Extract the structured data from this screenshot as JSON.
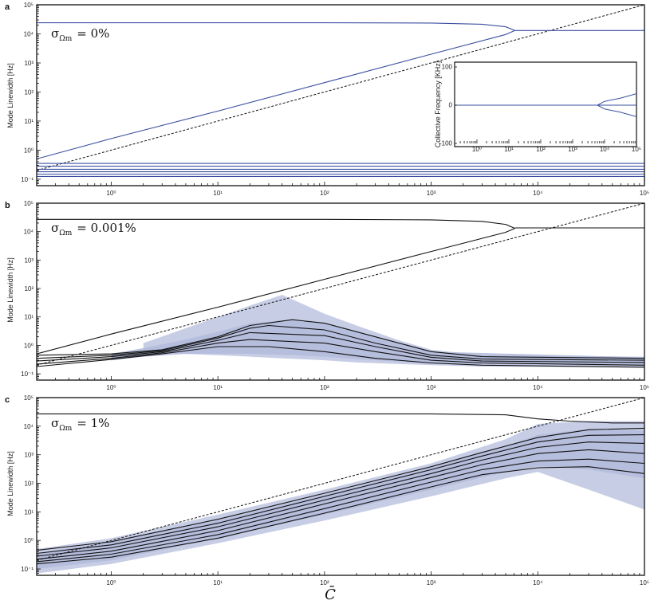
{
  "figure": {
    "xlabel": "C̄",
    "panels": [
      {
        "letter": "a",
        "ylabel": "Mode Linewidth [Hz]",
        "sigma_label": "σ",
        "sigma_sub": "Ωm",
        "sigma_value": "= 0%"
      },
      {
        "letter": "b",
        "ylabel": "Mode Linewidth [Hz]",
        "sigma_label": "σ",
        "sigma_sub": "Ωm",
        "sigma_value": "= 0.001%"
      },
      {
        "letter": "c",
        "ylabel": "Mode Linewidth [Hz]",
        "sigma_label": "σ",
        "sigma_sub": "Ωm",
        "sigma_value": "= 1%"
      }
    ],
    "inset": {
      "ylabel": "Collective Frequency [KHz]"
    }
  },
  "colors": {
    "blue_line": "#3a4fa0",
    "band": "#b4bcdc",
    "black": "#111111"
  },
  "chart_data": [
    {
      "type": "line",
      "panel": "a",
      "xscale": "log",
      "yscale": "log",
      "xlim": [
        0.2,
        100000
      ],
      "ylim": [
        0.06,
        100000
      ],
      "xticks": [
        "10⁰",
        "10¹",
        "10²",
        "10³",
        "10⁴",
        "10⁵"
      ],
      "yticks": [
        "10⁻¹",
        "10⁰",
        "10¹",
        "10²",
        "10³",
        "10⁴",
        "10⁵"
      ],
      "reference_line": {
        "style": "dashed",
        "x": [
          0.2,
          100000
        ],
        "y": [
          0.2,
          100000
        ]
      },
      "series": [
        {
          "x": [
            0.2,
            1,
            10,
            100,
            1000,
            5000,
            6100
          ],
          "y": [
            0.5,
            2.5,
            22,
            210,
            2000,
            9500,
            13000
          ]
        },
        {
          "x": [
            0.2,
            100,
            1000,
            3000,
            5000,
            6100
          ],
          "y": [
            24000,
            24000,
            23500,
            21500,
            17500,
            13000
          ]
        },
        {
          "x": [
            6100,
            100000
          ],
          "y": [
            13000,
            13000
          ]
        },
        {
          "x": [
            0.2,
            100000
          ],
          "y": [
            0.35,
            0.35
          ]
        },
        {
          "x": [
            0.2,
            100000
          ],
          "y": [
            0.28,
            0.28
          ]
        },
        {
          "x": [
            0.2,
            100000
          ],
          "y": [
            0.22,
            0.22
          ]
        },
        {
          "x": [
            0.2,
            100000
          ],
          "y": [
            0.18,
            0.18
          ]
        },
        {
          "x": [
            0.2,
            100000
          ],
          "y": [
            0.15,
            0.15
          ]
        },
        {
          "x": [
            0.2,
            100000
          ],
          "y": [
            0.125,
            0.125
          ]
        }
      ]
    },
    {
      "type": "line",
      "panel": "a-inset",
      "xscale": "log",
      "yscale": "linear",
      "xlim": [
        0.2,
        100000
      ],
      "ylim": [
        -100,
        100
      ],
      "xticks": [
        "10⁰",
        "10¹",
        "10²",
        "10³",
        "10⁴",
        "10⁵"
      ],
      "yticks": [
        "-100",
        "0",
        "100"
      ],
      "series": [
        {
          "x": [
            0.2,
            6000
          ],
          "y": [
            0,
            0
          ]
        },
        {
          "x": [
            6000,
            10000,
            30000,
            100000
          ],
          "y": [
            0,
            10,
            18,
            30
          ]
        },
        {
          "x": [
            6000,
            10000,
            30000,
            100000
          ],
          "y": [
            0,
            -10,
            -18,
            -30
          ]
        },
        {
          "x": [
            6000,
            100000
          ],
          "y": [
            0,
            0
          ]
        }
      ]
    },
    {
      "type": "area",
      "panel": "b",
      "xscale": "log",
      "yscale": "log",
      "xlim": [
        0.2,
        100000
      ],
      "ylim": [
        0.06,
        100000
      ],
      "xticks": [
        "10⁰",
        "10¹",
        "10²",
        "10³",
        "10⁴",
        "10⁵"
      ],
      "yticks": [
        "10⁻¹",
        "10⁰",
        "10¹",
        "10²",
        "10³",
        "10⁴",
        "10⁵"
      ],
      "reference_line": {
        "style": "dashed",
        "x": [
          0.2,
          100000
        ],
        "y": [
          0.2,
          100000
        ]
      },
      "bands": [
        {
          "x": [
            2,
            5,
            10,
            20,
            40,
            100,
            200,
            500,
            1000,
            3000,
            100000
          ],
          "upper": [
            1.2,
            4,
            10,
            25,
            60,
            13,
            5,
            1.5,
            0.7,
            0.45,
            0.4
          ],
          "lower": [
            0.6,
            0.5,
            0.45,
            0.4,
            0.35,
            0.3,
            0.25,
            0.22,
            0.2,
            0.18,
            0.17
          ]
        },
        {
          "x": [
            1,
            2,
            5,
            10,
            20,
            50,
            100,
            200,
            500,
            1000,
            100000
          ],
          "upper": [
            0.5,
            0.8,
            1.6,
            3,
            6,
            8,
            6,
            3,
            1.2,
            0.6,
            0.38
          ],
          "lower": [
            0.3,
            0.4,
            0.5,
            0.5,
            0.5,
            0.45,
            0.4,
            0.33,
            0.27,
            0.23,
            0.2
          ]
        }
      ],
      "series": [
        {
          "x": [
            0.2,
            1,
            10,
            100,
            1000,
            5000,
            6100
          ],
          "y": [
            0.5,
            2.5,
            22,
            210,
            2000,
            9500,
            13000
          ]
        },
        {
          "x": [
            0.2,
            100,
            1000,
            3000,
            5000,
            6100
          ],
          "y": [
            27000,
            27000,
            26000,
            23000,
            18000,
            13000
          ]
        },
        {
          "x": [
            6100,
            100000
          ],
          "y": [
            13500,
            13500
          ]
        },
        {
          "x": [
            0.2,
            1,
            3,
            10,
            20,
            50,
            100,
            300,
            1000,
            3000,
            100000
          ],
          "y": [
            0.45,
            0.5,
            0.7,
            2,
            5,
            8,
            6,
            2,
            0.6,
            0.4,
            0.35
          ]
        },
        {
          "x": [
            0.2,
            1,
            3,
            10,
            20,
            30,
            100,
            300,
            1000,
            3000,
            100000
          ],
          "y": [
            0.35,
            0.45,
            0.65,
            1.8,
            4,
            5,
            3.5,
            1.2,
            0.45,
            0.33,
            0.3
          ]
        },
        {
          "x": [
            0.2,
            1,
            3,
            10,
            20,
            100,
            300,
            1000,
            3000,
            100000
          ],
          "y": [
            0.28,
            0.4,
            0.6,
            1.5,
            2.8,
            2.2,
            0.9,
            0.38,
            0.28,
            0.25
          ]
        },
        {
          "x": [
            0.2,
            1,
            3,
            10,
            20,
            100,
            300,
            1000,
            3000,
            100000
          ],
          "y": [
            0.22,
            0.35,
            0.55,
            1.2,
            1.6,
            1.2,
            0.6,
            0.3,
            0.24,
            0.2
          ]
        },
        {
          "x": [
            0.2,
            1,
            3,
            10,
            30,
            100,
            300,
            1000,
            3000,
            100000
          ],
          "y": [
            0.18,
            0.32,
            0.5,
            0.9,
            0.9,
            0.6,
            0.35,
            0.24,
            0.2,
            0.17
          ]
        }
      ]
    },
    {
      "type": "area",
      "panel": "c",
      "xscale": "log",
      "yscale": "log",
      "xlim": [
        0.2,
        100000
      ],
      "ylim": [
        0.06,
        100000
      ],
      "xticks": [
        "10⁰",
        "10¹",
        "10²",
        "10³",
        "10⁴",
        "10⁵"
      ],
      "yticks": [
        "10⁻¹",
        "10⁰",
        "10¹",
        "10²",
        "10³",
        "10⁴",
        "10⁵"
      ],
      "reference_line": {
        "style": "dashed",
        "x": [
          0.2,
          100000
        ],
        "y": [
          0.2,
          100000
        ]
      },
      "bands": [
        {
          "x": [
            0.2,
            1,
            10,
            100,
            1000,
            5000,
            10000,
            30000,
            100000
          ],
          "upper": [
            0.5,
            1.2,
            8,
            60,
            500,
            3500,
            12000,
            15000,
            15000
          ],
          "lower": [
            0.07,
            0.15,
            0.8,
            5,
            35,
            150,
            250,
            60,
            12
          ]
        },
        {
          "x": [
            0.2,
            1,
            10,
            100,
            1000,
            5000,
            10000,
            30000,
            100000
          ],
          "upper": [
            0.35,
            0.9,
            5,
            40,
            350,
            2000,
            5000,
            8000,
            7000
          ],
          "lower": [
            0.1,
            0.2,
            1.2,
            8,
            60,
            250,
            400,
            300,
            150
          ]
        }
      ],
      "series": [
        {
          "x": [
            0.2,
            100,
            1000,
            5000,
            10000,
            20000,
            50000,
            100000
          ],
          "y": [
            27000,
            27000,
            27000,
            25000,
            18000,
            15000,
            13000,
            13000
          ]
        },
        {
          "x": [
            0.2,
            1,
            10,
            100,
            1000,
            3000,
            10000,
            30000,
            100000
          ],
          "y": [
            0.45,
            0.9,
            5.5,
            45,
            380,
            1200,
            4000,
            7500,
            8500
          ]
        },
        {
          "x": [
            0.2,
            1,
            10,
            100,
            1000,
            3000,
            10000,
            30000,
            100000
          ],
          "y": [
            0.35,
            0.7,
            4,
            35,
            300,
            900,
            2800,
            4800,
            5000
          ]
        },
        {
          "x": [
            0.2,
            1,
            10,
            100,
            1000,
            3000,
            10000,
            30000,
            100000
          ],
          "y": [
            0.28,
            0.55,
            3,
            26,
            220,
            650,
            1800,
            2800,
            2500
          ]
        },
        {
          "x": [
            0.2,
            1,
            10,
            100,
            1000,
            3000,
            10000,
            30000,
            100000
          ],
          "y": [
            0.22,
            0.42,
            2.2,
            19,
            160,
            450,
            1100,
            1500,
            1100
          ]
        },
        {
          "x": [
            0.2,
            1,
            10,
            100,
            1000,
            3000,
            10000,
            30000,
            100000
          ],
          "y": [
            0.18,
            0.33,
            1.6,
            13,
            110,
            300,
            600,
            700,
            500
          ]
        },
        {
          "x": [
            0.2,
            1,
            10,
            100,
            1000,
            3000,
            10000,
            30000,
            100000
          ],
          "y": [
            0.15,
            0.26,
            1.2,
            9,
            75,
            200,
            350,
            380,
            220
          ]
        }
      ]
    }
  ]
}
